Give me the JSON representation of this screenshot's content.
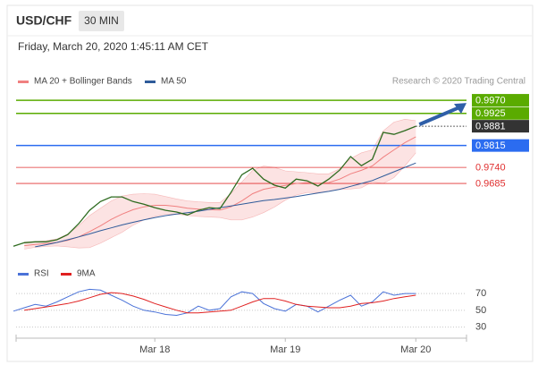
{
  "header": {
    "symbol": "USD/CHF",
    "timeframe": "30 MIN",
    "date": "Friday, March 20, 2020 1:45:11 AM CET",
    "credit": "Research © 2020 Trading Central"
  },
  "chart_data": [
    {
      "type": "line",
      "color": "#2e6b1f",
      "values": [
        0.947,
        0.9482,
        0.9485,
        0.9485,
        0.9492,
        0.951,
        0.9547,
        0.9593,
        0.9623,
        0.9639,
        0.9639,
        0.9623,
        0.9614,
        0.9602,
        0.9593,
        0.9587,
        0.9577,
        0.9593,
        0.9602,
        0.9599,
        0.9654,
        0.9715,
        0.9737,
        0.97,
        0.9679,
        0.9669,
        0.97,
        0.9694,
        0.9676,
        0.97,
        0.9731,
        0.9777,
        0.9746,
        0.9768,
        0.986,
        0.9853,
        0.9866,
        0.9881
      ],
      "series": [
        {
          "name": "MA 20 + Bollinger Bands",
          "color": "#f08080",
          "values": [
            null,
            0.9472,
            0.9476,
            0.9479,
            0.9483,
            0.949,
            0.9502,
            0.952,
            0.954,
            0.9562,
            0.958,
            0.9595,
            0.9605,
            0.961,
            0.961,
            0.9606,
            0.96,
            0.9597,
            0.9595,
            0.9594,
            0.9605,
            0.9625,
            0.965,
            0.9665,
            0.9672,
            0.9678,
            0.9685,
            0.9688,
            0.9686,
            0.9688,
            0.97,
            0.9718,
            0.973,
            0.9745,
            0.9775,
            0.98,
            0.9825,
            0.9845
          ],
          "upper": [
            null,
            0.9484,
            0.9486,
            0.9489,
            0.9495,
            0.9512,
            0.954,
            0.9575,
            0.96,
            0.9625,
            0.9642,
            0.9648,
            0.965,
            0.9648,
            0.964,
            0.9632,
            0.9625,
            0.9622,
            0.962,
            0.962,
            0.965,
            0.969,
            0.973,
            0.9745,
            0.974,
            0.9728,
            0.9725,
            0.9722,
            0.9718,
            0.9718,
            0.9735,
            0.977,
            0.979,
            0.98,
            0.9865,
            0.9895,
            0.9905,
            0.99
          ],
          "lower": [
            null,
            0.946,
            0.9466,
            0.9469,
            0.9471,
            0.9468,
            0.9464,
            0.9465,
            0.948,
            0.9499,
            0.9518,
            0.9542,
            0.956,
            0.9572,
            0.958,
            0.958,
            0.9575,
            0.9572,
            0.957,
            0.9568,
            0.956,
            0.956,
            0.957,
            0.9585,
            0.9604,
            0.9628,
            0.9645,
            0.9654,
            0.9654,
            0.9658,
            0.9665,
            0.9666,
            0.967,
            0.969,
            0.9685,
            0.9705,
            0.9745,
            0.979
          ]
        },
        {
          "name": "MA 50",
          "color": "#2f5b9a",
          "values": [
            null,
            null,
            0.9468,
            0.9475,
            0.9483,
            0.9492,
            0.9502,
            0.9512,
            0.9523,
            0.9533,
            0.9543,
            0.9552,
            0.956,
            0.9568,
            0.9575,
            0.958,
            0.9585,
            0.959,
            0.9596,
            0.9602,
            0.9608,
            0.9614,
            0.962,
            0.9626,
            0.963,
            0.9635,
            0.964,
            0.9646,
            0.9652,
            0.9658,
            0.9665,
            0.9675,
            0.9685,
            0.9695,
            0.971,
            0.9725,
            0.974,
            0.9755
          ]
        }
      ],
      "levels": [
        {
          "value": 0.997,
          "label": "0.9970",
          "color": "#5aab00",
          "boxed": true
        },
        {
          "value": 0.9925,
          "label": "0.9925",
          "color": "#5aab00",
          "boxed": true
        },
        {
          "value": 0.9881,
          "label": "0.9881",
          "color": "#333333",
          "boxed": true,
          "style": "dotted"
        },
        {
          "value": 0.9815,
          "label": "0.9815",
          "color": "#2b6cf0",
          "boxed": true
        },
        {
          "value": 0.974,
          "label": "0.9740",
          "color": "#e03030",
          "boxed": false
        },
        {
          "value": 0.9685,
          "label": "0.9685",
          "color": "#e03030",
          "boxed": false
        }
      ],
      "ylim": [
        0.944,
        1.0007
      ]
    },
    {
      "type": "line",
      "categories": [
        null,
        null,
        null,
        null,
        null,
        null,
        null,
        null,
        null,
        null,
        null,
        null,
        null,
        "Mar 18",
        null,
        null,
        null,
        null,
        null,
        null,
        null,
        null,
        null,
        null,
        null,
        "Mar 19",
        null,
        null,
        null,
        null,
        null,
        null,
        null,
        null,
        null,
        null,
        null,
        "Mar 20"
      ],
      "series": [
        {
          "name": "RSI",
          "color": "#4a72d8",
          "values": [
            49,
            53,
            57,
            55,
            60,
            66,
            72,
            75,
            74,
            68,
            62,
            55,
            50,
            48,
            45,
            44,
            47,
            55,
            50,
            52,
            66,
            72,
            70,
            58,
            52,
            49,
            57,
            55,
            48,
            55,
            62,
            68,
            55,
            60,
            72,
            68,
            70,
            70
          ]
        },
        {
          "name": "9MA",
          "color": "#e02020",
          "values": [
            null,
            50,
            52,
            54,
            56,
            58,
            61,
            65,
            69,
            71,
            70,
            67,
            63,
            58,
            54,
            50,
            47,
            47,
            48,
            49,
            50,
            55,
            60,
            64,
            64,
            61,
            57,
            55,
            54,
            53,
            53,
            55,
            58,
            59,
            61,
            64,
            66,
            68
          ]
        }
      ],
      "ylim": [
        20,
        85
      ],
      "yticks": [
        30,
        50,
        70
      ],
      "grid": true
    }
  ]
}
